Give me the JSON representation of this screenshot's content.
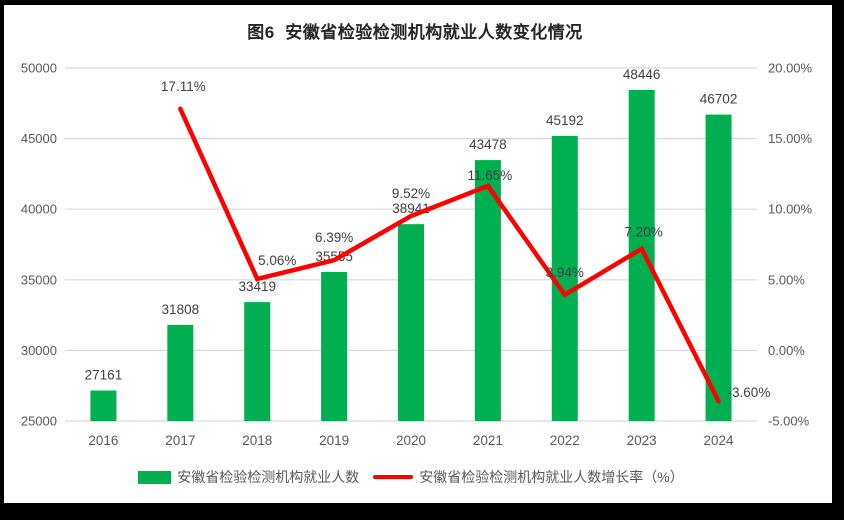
{
  "colors": {
    "bar": "#00B050",
    "line": "#FF0000",
    "grid": "#D9D9D9",
    "axis_text": "#595959",
    "data_label": "#404040",
    "title_text": "#262626",
    "frame": "#000000",
    "background": "#FFFFFF"
  },
  "chart_data": {
    "type": "combo-bar-line",
    "title": "图6  安徽省检验检测机构就业人数变化情况",
    "categories": [
      "2016",
      "2017",
      "2018",
      "2019",
      "2020",
      "2021",
      "2022",
      "2023",
      "2024"
    ],
    "series": [
      {
        "name": "安徽省检验检测机构就业人数",
        "type": "bar",
        "axis": "left",
        "color": "#00B050",
        "values": [
          27161,
          31808,
          33419,
          35555,
          38941,
          43478,
          45192,
          48446,
          46702
        ],
        "labels": [
          "27161",
          "31808",
          "33419",
          "35555",
          "38941",
          "43478",
          "45192",
          "48446",
          "46702"
        ]
      },
      {
        "name": "安徽省检验检测机构就业人数增长率（%）",
        "type": "line",
        "axis": "right",
        "color": "#FF0000",
        "values": [
          null,
          17.11,
          5.06,
          6.39,
          9.52,
          11.65,
          3.94,
          7.2,
          -3.6
        ],
        "labels": [
          null,
          "17.11%",
          "5.06%",
          "6.39%",
          "9.52%",
          "11.65%",
          "3.94%",
          "7.20%",
          "-3.60%"
        ]
      }
    ],
    "left_axis": {
      "min": 25000,
      "max": 50000,
      "step": 5000,
      "tick_labels": [
        "25000",
        "30000",
        "35000",
        "40000",
        "45000",
        "50000"
      ]
    },
    "right_axis": {
      "min": -5,
      "max": 20,
      "step": 5,
      "tick_labels": [
        "-5.00%",
        "0.00%",
        "5.00%",
        "10.00%",
        "15.00%",
        "20.00%"
      ]
    },
    "grid": true,
    "legend_position": "bottom"
  }
}
